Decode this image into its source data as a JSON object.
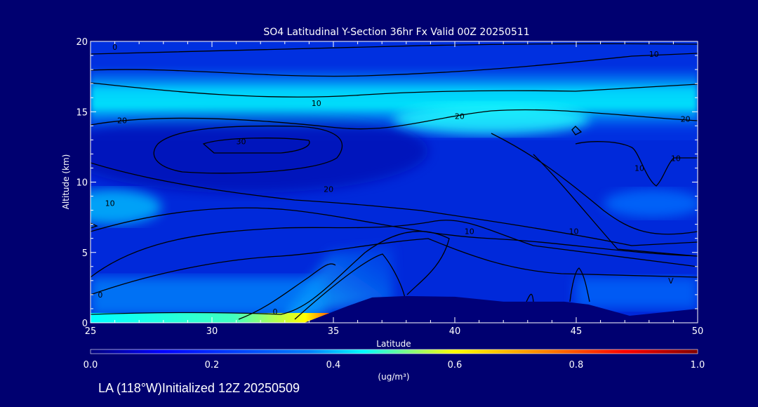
{
  "chart_data": {
    "type": "heatmap",
    "title": "SO4 Latitudinal Y-Section 36hr  Fx Valid 00Z 20250511",
    "xlabel": "Latitude",
    "ylabel": "Altitude (km)",
    "xlim": [
      25,
      50
    ],
    "ylim": [
      0,
      20
    ],
    "x_ticks": [
      25,
      30,
      35,
      40,
      45,
      50
    ],
    "y_ticks": [
      0,
      5,
      10,
      15,
      20
    ],
    "colorbar": {
      "label": "(ug/m³)",
      "range": [
        0.0,
        1.0
      ],
      "ticks": [
        "0.0",
        "0.2",
        "0.4",
        "0.6",
        "0.8",
        "1.0"
      ],
      "colors": [
        "#000080",
        "#0000ff",
        "#0080ff",
        "#00ffff",
        "#ffff00",
        "#ff8000",
        "#ff0000",
        "#800000"
      ]
    },
    "field_regions": [
      {
        "name": "upper-high",
        "lat_range": [
          25,
          50
        ],
        "alt_range": [
          14,
          17.5
        ],
        "value": 0.3
      },
      {
        "name": "mid-west",
        "lat_range": [
          25,
          28
        ],
        "alt_range": [
          7,
          9
        ],
        "value": 0.25
      },
      {
        "name": "surface-west",
        "lat_range": [
          25,
          34
        ],
        "alt_range": [
          0,
          0.5
        ],
        "value": 0.55
      },
      {
        "name": "surface-peak",
        "lat_range": [
          32,
          34
        ],
        "alt_range": [
          0,
          0.3
        ],
        "value": 0.8
      }
    ],
    "contour_labels": [
      {
        "text": "0",
        "lat": 26.0,
        "alt": 19.6
      },
      {
        "text": "10",
        "lat": 48.2,
        "alt": 19.1
      },
      {
        "text": "10",
        "lat": 34.3,
        "alt": 15.6
      },
      {
        "text": "20",
        "lat": 40.2,
        "alt": 14.7
      },
      {
        "text": "20",
        "lat": 49.5,
        "alt": 14.5
      },
      {
        "text": "20",
        "lat": 26.3,
        "alt": 14.4
      },
      {
        "text": "30",
        "lat": 31.2,
        "alt": 12.9
      },
      {
        "text": "20",
        "lat": 34.8,
        "alt": 9.5
      },
      {
        "text": "10",
        "lat": 25.8,
        "alt": 8.5
      },
      {
        "text": "10",
        "lat": 40.6,
        "alt": 6.5
      },
      {
        "text": "10",
        "lat": 44.9,
        "alt": 6.5
      },
      {
        "text": "10",
        "lat": 47.6,
        "alt": 11.0
      },
      {
        "text": "10",
        "lat": 49.1,
        "alt": 11.7
      },
      {
        "text": "0",
        "lat": 25.4,
        "alt": 2.0
      },
      {
        "text": "0",
        "lat": 32.6,
        "alt": 0.8
      },
      {
        "text": "V",
        "lat": 48.9,
        "alt": 3.0
      }
    ],
    "terrain": [
      [
        25,
        0
      ],
      [
        33.8,
        0
      ],
      [
        35.6,
        1.2
      ],
      [
        36.6,
        1.8
      ],
      [
        38,
        1.9
      ],
      [
        40,
        1.85
      ],
      [
        42,
        1.5
      ],
      [
        44.5,
        1.5
      ],
      [
        45.5,
        1.3
      ],
      [
        47.2,
        0.5
      ],
      [
        50,
        1.0
      ]
    ]
  },
  "footer": {
    "text": "LA (118°W)Initialized 12Z 20250509"
  }
}
